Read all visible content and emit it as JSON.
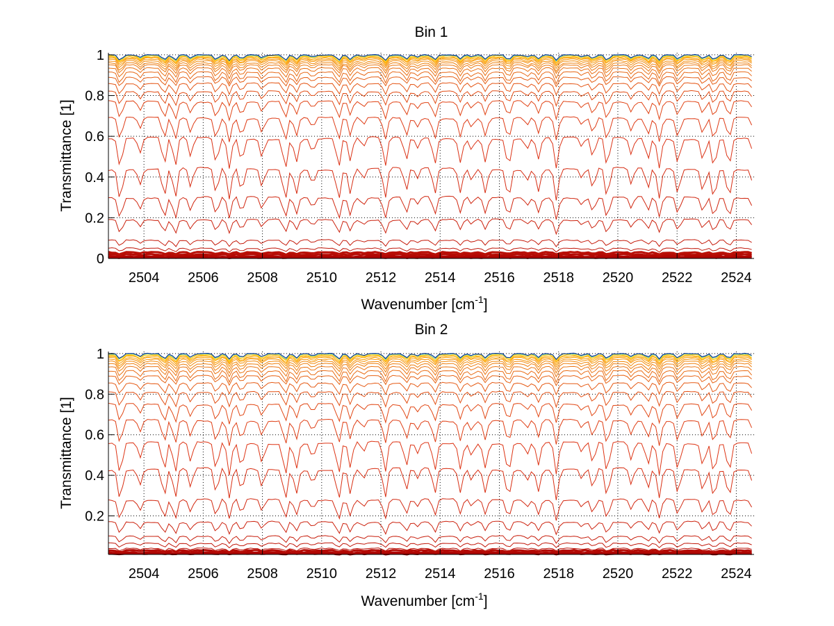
{
  "chart_data": [
    {
      "type": "line",
      "title": "Bin 1",
      "xlabel": "Wavenumber [cm",
      "xlabel_sup": "-1",
      "xlabel_end": "]",
      "ylabel": "Transmittance [1]",
      "xlim": [
        2502.8,
        2524.6
      ],
      "ylim": [
        0,
        1.01
      ],
      "xticks": [
        2504,
        2506,
        2508,
        2510,
        2512,
        2514,
        2516,
        2518,
        2520,
        2522,
        2524
      ],
      "xtick_labels": [
        "2504",
        "2506",
        "2508",
        "2510",
        "2512",
        "2514",
        "2516",
        "2518",
        "2520",
        "2522",
        "2524"
      ],
      "yticks": [
        0,
        0.2,
        0.4,
        0.6,
        0.8,
        1
      ],
      "ytick_labels": [
        "0",
        "0.2",
        "0.4",
        "0.6",
        "0.8",
        "1"
      ],
      "grid": true,
      "baselines": [
        0.005,
        0.01,
        0.02,
        0.03,
        0.05,
        0.09,
        0.19,
        0.3,
        0.44,
        0.59,
        0.69,
        0.77,
        0.82,
        0.86,
        0.89,
        0.915,
        0.935,
        0.95,
        0.96,
        0.97,
        0.978,
        0.984,
        0.989,
        0.993,
        0.996,
        0.998,
        1.0
      ],
      "colormap": "jet-reversed (red low, orange/yellow, blue at 1)"
    },
    {
      "type": "line",
      "title": "Bin 2",
      "xlabel": "Wavenumber [cm",
      "xlabel_sup": "-1",
      "xlabel_end": "]",
      "ylabel": "Transmittance [1]",
      "xlim": [
        2502.8,
        2524.6
      ],
      "ylim": [
        0.01,
        1.01
      ],
      "xticks": [
        2504,
        2506,
        2508,
        2510,
        2512,
        2514,
        2516,
        2518,
        2520,
        2522,
        2524
      ],
      "xtick_labels": [
        "2504",
        "2506",
        "2508",
        "2510",
        "2512",
        "2514",
        "2516",
        "2518",
        "2520",
        "2522",
        "2524"
      ],
      "yticks": [
        0.2,
        0.4,
        0.6,
        0.8,
        1
      ],
      "ytick_labels": [
        "0.2",
        "0.4",
        "0.6",
        "0.8",
        "1"
      ],
      "grid": true,
      "baselines": [
        0.015,
        0.02,
        0.03,
        0.04,
        0.065,
        0.1,
        0.17,
        0.28,
        0.43,
        0.56,
        0.67,
        0.75,
        0.81,
        0.855,
        0.89,
        0.915,
        0.935,
        0.95,
        0.962,
        0.972,
        0.98,
        0.986,
        0.991,
        0.995,
        0.998,
        1.0
      ],
      "colormap": "jet-reversed (red low, orange/yellow, cyan at 1)"
    }
  ]
}
